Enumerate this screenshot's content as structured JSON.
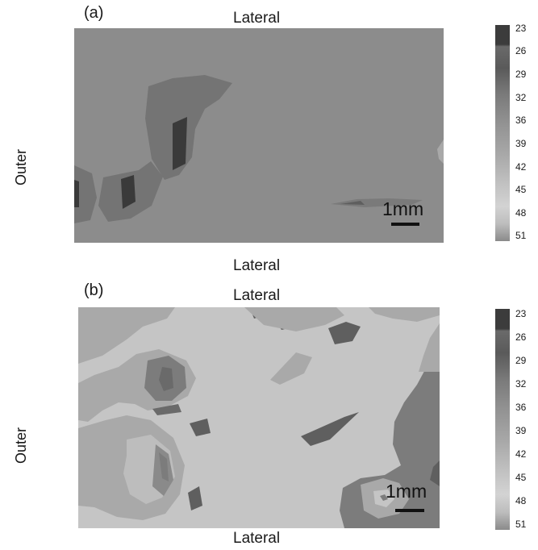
{
  "panels": [
    {
      "tag": "(a)",
      "top_label": "Lateral",
      "bottom_label": "Lateral",
      "side_label": "Outer",
      "scale_text": "1mm",
      "colorbar_ticks": [
        "23",
        "26",
        "29",
        "32",
        "36",
        "39",
        "42",
        "45",
        "48",
        "51"
      ]
    },
    {
      "tag": "(b)",
      "top_label": "Lateral",
      "bottom_label": "Lateral",
      "side_label": "Outer",
      "scale_text": "1mm",
      "colorbar_ticks": [
        "23",
        "26",
        "29",
        "32",
        "36",
        "39",
        "42",
        "45",
        "48",
        "51"
      ]
    }
  ],
  "chart_data": {
    "type": "heatmap",
    "panels": [
      "(a)",
      "(b)"
    ],
    "colorbar": {
      "values": [
        23,
        26,
        29,
        32,
        36,
        39,
        42,
        45,
        48,
        51
      ],
      "colors": [
        "#3c3c3c",
        "#666666",
        "#5a5a5a",
        "#7a7a7a",
        "#939393",
        "#a8a8a8",
        "#bdbdbd",
        "#cfcfcf",
        "#bdbdbd",
        "#8d8d8d"
      ]
    },
    "colors": {
      "a_background": "#8c8c8c",
      "a_region": "#747474",
      "a_dark": "#3a3a3a",
      "b_background": "#c5c5c5",
      "b_region_mid": "#a9a9a9",
      "b_region_dark": "#7c7c7c",
      "b_region_darkest": "#5f5f5f"
    }
  }
}
